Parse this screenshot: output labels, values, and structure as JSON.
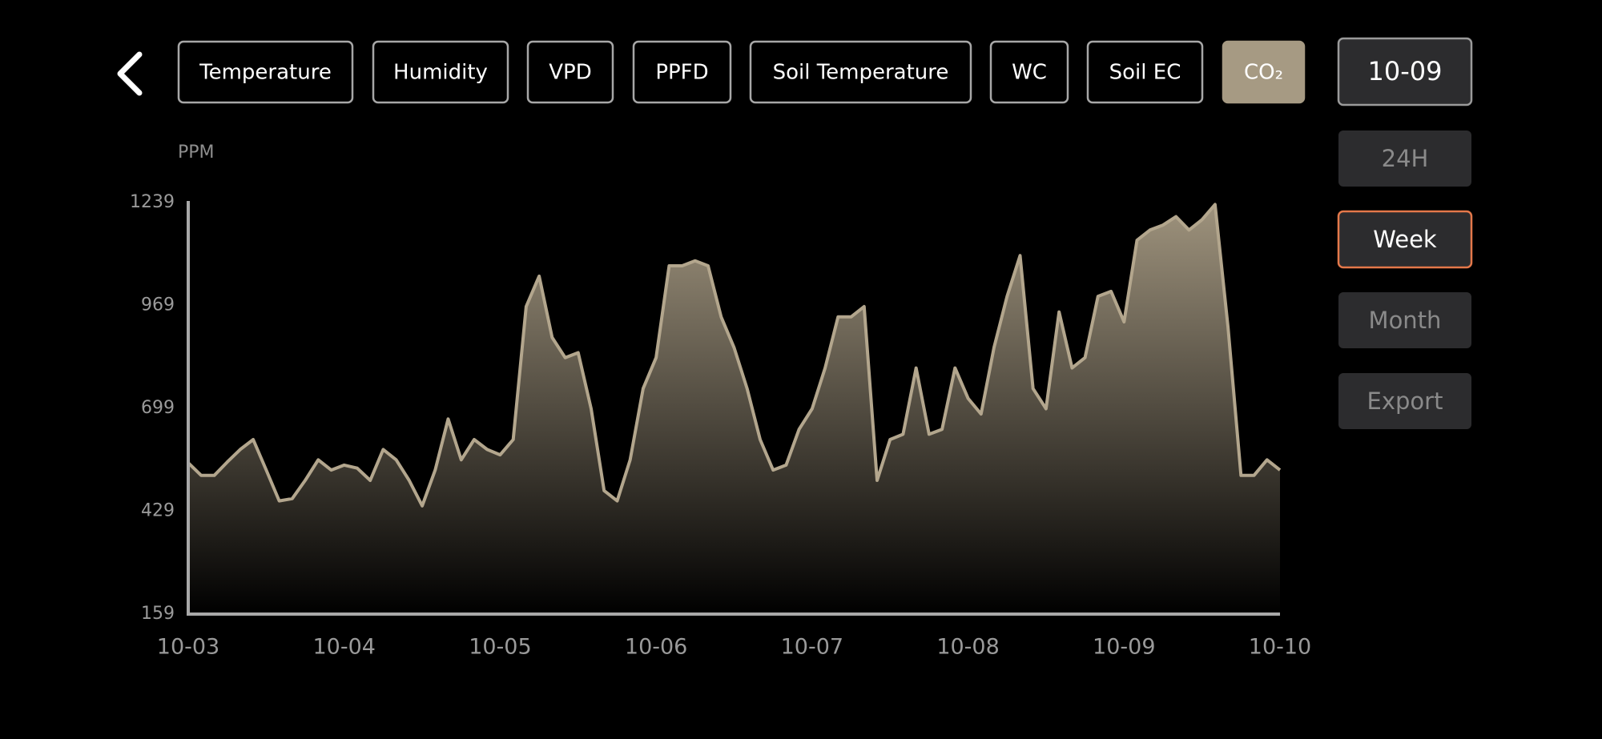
{
  "nav": {
    "tabs": [
      "Temperature",
      "Humidity",
      "VPD",
      "PPFD",
      "Soil Temperature",
      "WC",
      "Soil EC",
      "CO₂"
    ],
    "active_index": 7
  },
  "controls": {
    "date": "10-09",
    "ranges": [
      "24H",
      "Week",
      "Month"
    ],
    "active_range": 1,
    "export": "Export"
  },
  "chart_data": {
    "type": "area",
    "y_label": "PPM",
    "color": "#b3a68d",
    "x": [
      0,
      2,
      4,
      6,
      8,
      10,
      12,
      14,
      16,
      18,
      20,
      22,
      24,
      26,
      28,
      30,
      32,
      34,
      36,
      38,
      40,
      42,
      44,
      46,
      48,
      50,
      52,
      54,
      56,
      58,
      60,
      62,
      64,
      66,
      68,
      70,
      72,
      74,
      76,
      78,
      80,
      82,
      84,
      86,
      88,
      90,
      92,
      94,
      96,
      98,
      100,
      102,
      104,
      106,
      108,
      110,
      112,
      114,
      116,
      118,
      120,
      122,
      124,
      126,
      128,
      130,
      132,
      134,
      136,
      138,
      140,
      142,
      144,
      146,
      148,
      150,
      152,
      154,
      156,
      158,
      160,
      162,
      164,
      166,
      168
    ],
    "values": [
      556,
      523,
      523,
      558,
      591,
      617,
      537,
      456,
      462,
      510,
      564,
      537,
      550,
      542,
      510,
      591,
      564,
      510,
      443,
      537,
      671,
      564,
      617,
      591,
      577,
      617,
      966,
      1046,
      885,
      832,
      845,
      698,
      483,
      456,
      564,
      751,
      832,
      1073,
      1073,
      1086,
      1073,
      939,
      858,
      751,
      617,
      537,
      550,
      644,
      698,
      805,
      939,
      939,
      966,
      510,
      617,
      631,
      805,
      631,
      644,
      805,
      725,
      684,
      859,
      993,
      1100,
      751,
      698,
      952,
      805,
      832,
      993,
      1006,
      926,
      1140,
      1167,
      1180,
      1202,
      1167,
      1194,
      1234,
      912,
      523,
      523,
      564,
      537
    ],
    "xlim": [
      0,
      168
    ],
    "xticks": [
      {
        "value": 0,
        "label": "10-03"
      },
      {
        "value": 24,
        "label": "10-04"
      },
      {
        "value": 48,
        "label": "10-05"
      },
      {
        "value": 72,
        "label": "10-06"
      },
      {
        "value": 96,
        "label": "10-07"
      },
      {
        "value": 120,
        "label": "10-08"
      },
      {
        "value": 144,
        "label": "10-09"
      },
      {
        "value": 168,
        "label": "10-10"
      }
    ],
    "ylim": [
      159,
      1239
    ],
    "yticks": [
      159,
      429,
      699,
      969,
      1239
    ],
    "grid": false
  }
}
